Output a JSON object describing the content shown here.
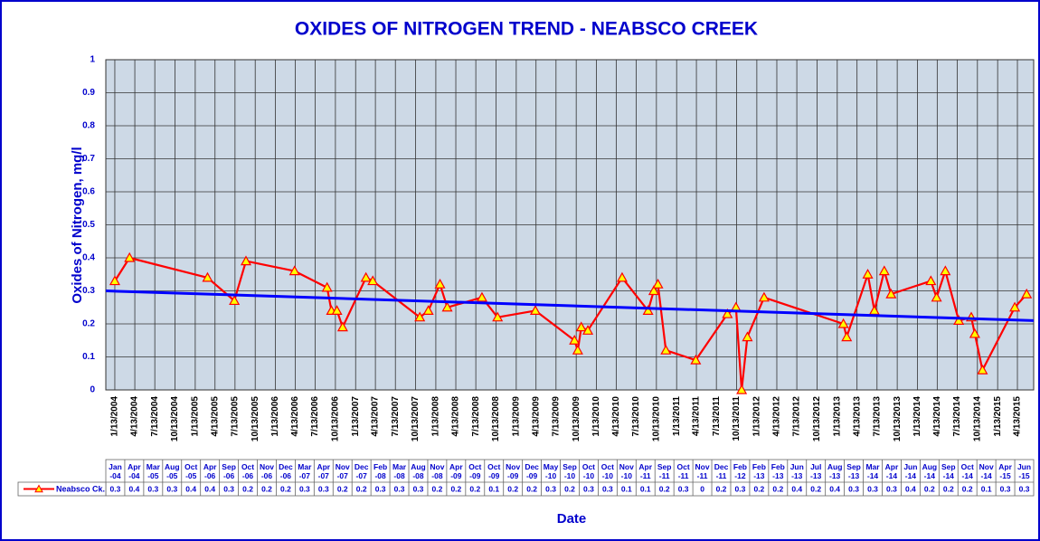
{
  "chart_data": {
    "type": "line",
    "title": "OXIDES OF NITROGEN TREND - NEABSCO CREEK",
    "xlabel": "Date",
    "ylabel": "Oxides of Nitrogen, mg/l",
    "ylim": [
      0,
      1
    ],
    "yticks": [
      0,
      0.1,
      0.2,
      0.3,
      0.4,
      0.5,
      0.6,
      0.7,
      0.8,
      0.9,
      1
    ],
    "xlim": [
      "12/3/2003",
      "6/26/2015"
    ],
    "xticks": [
      "1/13/2004",
      "4/13/2004",
      "7/13/2004",
      "10/13/2004",
      "1/13/2005",
      "4/13/2005",
      "7/13/2005",
      "10/13/2005",
      "1/13/2006",
      "4/13/2006",
      "7/13/2006",
      "10/13/2006",
      "1/13/2007",
      "4/13/2007",
      "7/13/2007",
      "10/13/2007",
      "1/13/2008",
      "4/13/2008",
      "7/13/2008",
      "10/13/2008",
      "1/13/2009",
      "4/13/2009",
      "7/13/2009",
      "10/13/2009",
      "1/13/2010",
      "4/13/2010",
      "7/13/2010",
      "10/13/2010",
      "1/13/2011",
      "4/13/2011",
      "7/13/2011",
      "10/13/2011",
      "1/13/2012",
      "4/13/2012",
      "7/13/2012",
      "10/13/2012",
      "1/13/2013",
      "4/13/2013",
      "7/13/2013",
      "10/13/2013",
      "1/13/2014",
      "4/13/2014",
      "7/13/2014",
      "10/13/2014",
      "1/13/2015",
      "4/13/2015"
    ],
    "grid": true,
    "categories": [
      "Jan -04",
      "Apr -04",
      "Mar -05",
      "Aug -05",
      "Oct -05",
      "Apr -06",
      "Sep -06",
      "Oct -06",
      "Nov -06",
      "Dec -06",
      "Mar -07",
      "Apr -07",
      "Nov -07",
      "Dec -07",
      "Feb -08",
      "Mar -08",
      "Aug -08",
      "Nov -08",
      "Apr -09",
      "Oct -09",
      "Oct -09",
      "Nov -09",
      "Dec -09",
      "May -10",
      "Sep -10",
      "Oct -10",
      "Oct -10",
      "Nov -10",
      "Apr -11",
      "Sep -11",
      "Oct -11",
      "Nov -11",
      "Dec -11",
      "Feb -12",
      "Feb -13",
      "Feb -13",
      "Jun -13",
      "Jul -13",
      "Aug -13",
      "Sep -13",
      "Mar -14",
      "Apr -14",
      "Jun -14",
      "Aug -14",
      "Sep -14",
      "Oct -14",
      "Nov -14",
      "Apr -15",
      "Jun -15"
    ],
    "series": [
      {
        "name": "Neabsco Ck.",
        "color": "#ff0000",
        "marker_color": "#ffff00",
        "x": [
          "1/13/2004",
          "3/20/2004",
          "3/10/2005",
          "7/10/2005",
          "9/1/2005",
          "4/10/2006",
          "9/5/2006",
          "9/25/2006",
          "10/20/2006",
          "11/15/2006",
          "3/1/2007",
          "4/1/2007",
          "11/1/2007",
          "12/10/2007",
          "2/1/2008",
          "3/5/2008",
          "8/10/2008",
          "10/20/2008",
          "4/10/2009",
          "10/5/2009",
          "10/20/2009",
          "11/5/2009",
          "12/5/2009",
          "5/10/2010",
          "9/5/2010",
          "10/1/2010",
          "10/20/2010",
          "11/25/2010",
          "4/10/2011",
          "9/1/2011",
          "10/10/2011",
          "11/5/2011",
          "12/1/2011",
          "2/15/2012",
          "2/10/2013",
          "2/25/2013",
          "6/1/2013",
          "7/1/2013",
          "8/15/2013",
          "9/15/2013",
          "3/15/2014",
          "4/10/2014",
          "5/20/2014",
          "7/20/2014",
          "9/15/2014",
          "10/1/2014",
          "11/5/2014",
          "4/1/2015",
          "5/25/2015"
        ],
        "values": [
          0.33,
          0.4,
          0.34,
          0.27,
          0.39,
          0.36,
          0.31,
          0.24,
          0.24,
          0.19,
          0.34,
          0.33,
          0.22,
          0.24,
          0.32,
          0.25,
          0.28,
          0.22,
          0.24,
          0.15,
          0.12,
          0.19,
          0.18,
          0.34,
          0.24,
          0.3,
          0.32,
          0.12,
          0.09,
          0.23,
          0.25,
          0,
          0.16,
          0.28,
          0.2,
          0.16,
          0.35,
          0.24,
          0.36,
          0.29,
          0.33,
          0.28,
          0.36,
          0.21,
          0.22,
          0.17,
          0.06,
          0.25,
          0.29
        ],
        "value_labels": [
          "0.3",
          "0.4",
          "0.3",
          "0.3",
          "0.4",
          "0.4",
          "0.3",
          "0.2",
          "0.2",
          "0.2",
          "0.3",
          "0.3",
          "0.2",
          "0.2",
          "0.3",
          "0.3",
          "0.3",
          "0.2",
          "0.2",
          "0.2",
          "0.1",
          "0.2",
          "0.2",
          "0.3",
          "0.2",
          "0.3",
          "0.3",
          "0.1",
          "0.1",
          "0.2",
          "0.3",
          "0",
          "0.2",
          "0.3",
          "0.2",
          "0.2",
          "0.4",
          "0.2",
          "0.4",
          "0.3",
          "0.3",
          "0.3",
          "0.4",
          "0.2",
          "0.2",
          "0.2",
          "0.1",
          "0.3",
          "0.3"
        ]
      }
    ],
    "trendline": {
      "color": "#0000ff",
      "x": [
        "12/3/2003",
        "6/26/2015"
      ],
      "values": [
        0.3,
        0.21
      ]
    }
  }
}
